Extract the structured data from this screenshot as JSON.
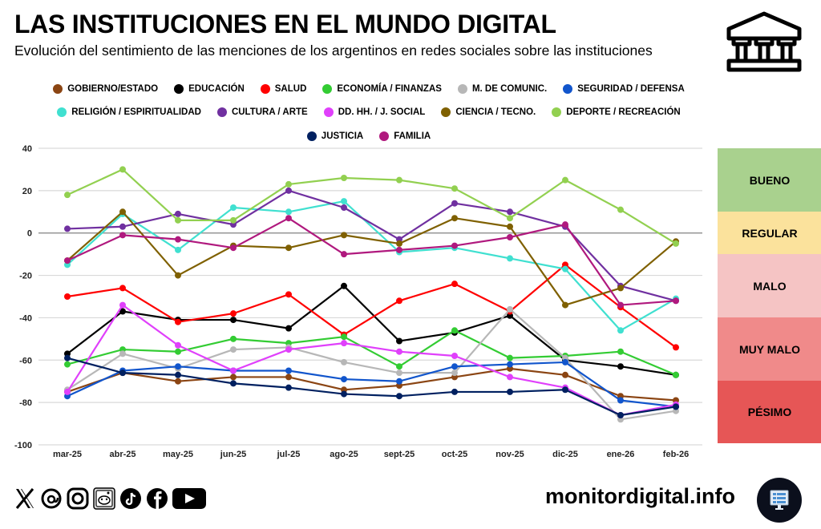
{
  "header": {
    "title": "LAS INSTITUCIONES EN EL MUNDO DIGITAL",
    "subtitle": "Evolución del sentimiento de las menciones de los argentinos en redes sociales sobre las instituciones",
    "icon": "institution-building-icon"
  },
  "scale_legend": [
    {
      "label": "BUENO",
      "color": "#a9d18e"
    },
    {
      "label": "REGULAR",
      "color": "#fbe29c"
    },
    {
      "label": "MALO",
      "color": "#f5c4c4"
    },
    {
      "label": "MUY MALO",
      "color": "#f08a8a"
    },
    {
      "label": "PÉSIMO",
      "color": "#e65656"
    }
  ],
  "footer": {
    "social_icons": [
      "x-icon",
      "threads-icon",
      "instagram-icon",
      "reddit-icon",
      "tiktok-icon",
      "facebook-icon",
      "youtube-icon"
    ],
    "site": "monitordigital.info",
    "site_icon": "monitor-dashboard-icon"
  },
  "chart_data": {
    "type": "line",
    "title": "LAS INSTITUCIONES EN EL MUNDO DIGITAL",
    "subtitle": "Evolución del sentimiento de las menciones de los argentinos en redes sociales sobre las instituciones",
    "xlabel": "",
    "ylabel": "",
    "ylim": [
      -100,
      40
    ],
    "yticks": [
      40,
      20,
      0,
      -20,
      -40,
      -60,
      -80,
      -100
    ],
    "grid": true,
    "legend_position": "top",
    "categories": [
      "mar-25",
      "abr-25",
      "may-25",
      "jun-25",
      "jul-25",
      "ago-25",
      "sept-25",
      "oct-25",
      "nov-25",
      "dic-25",
      "ene-26",
      "feb-26"
    ],
    "series": [
      {
        "name": "GOBIERNO/ESTADO",
        "color": "#8b4513",
        "values": [
          -75,
          -66,
          -70,
          -68,
          -68,
          -74,
          -72,
          -68,
          -64,
          -67,
          -77,
          -79
        ]
      },
      {
        "name": "EDUCACIÓN",
        "color": "#000000",
        "values": [
          -57,
          -37,
          -41,
          -41,
          -45,
          -25,
          -51,
          -47,
          -39,
          -60,
          -63,
          -67
        ]
      },
      {
        "name": "SALUD",
        "color": "#ff0000",
        "values": [
          -30,
          -26,
          -42,
          -38,
          -29,
          -48,
          -32,
          -24,
          -37,
          -15,
          -35,
          -54
        ]
      },
      {
        "name": "ECONOMÍA / FINANZAS",
        "color": "#33cc33",
        "values": [
          -62,
          -55,
          -56,
          -50,
          -52,
          -49,
          -63,
          -46,
          -59,
          -58,
          -56,
          -67
        ]
      },
      {
        "name": "M. DE COMUNIC.",
        "color": "#b7b7b7",
        "values": [
          -74,
          -57,
          -64,
          -55,
          -54,
          -61,
          -66,
          -66,
          -36,
          -59,
          -88,
          -84
        ]
      },
      {
        "name": "SEGURIDAD / DEFENSA",
        "color": "#1155cc",
        "values": [
          -77,
          -65,
          -63,
          -65,
          -65,
          -69,
          -70,
          -63,
          -62,
          -61,
          -79,
          -82
        ]
      },
      {
        "name": "RELIGIÓN / ESPIRITUALIDAD",
        "color": "#40e0d0",
        "values": [
          -15,
          9,
          -8,
          12,
          10,
          15,
          -9,
          -7,
          -12,
          -17,
          -46,
          -31
        ]
      },
      {
        "name": "CULTURA / ARTE",
        "color": "#7030a0",
        "values": [
          2,
          3,
          9,
          4,
          20,
          12,
          -3,
          14,
          10,
          3,
          -25,
          -32
        ]
      },
      {
        "name": "DD. HH. / J. SOCIAL",
        "color": "#e040fb",
        "values": [
          -75,
          -34,
          -53,
          -65,
          -55,
          -52,
          -56,
          -58,
          -68,
          -73,
          -86,
          -81
        ]
      },
      {
        "name": "CIENCIA / TECNO.",
        "color": "#7f6000",
        "values": [
          -13,
          10,
          -20,
          -6,
          -7,
          -1,
          -5,
          7,
          3,
          -34,
          -26,
          -4
        ]
      },
      {
        "name": "DEPORTE / RECREACIÓN",
        "color": "#92d050",
        "values": [
          18,
          30,
          6,
          6,
          23,
          26,
          25,
          21,
          7,
          25,
          11,
          -5
        ]
      },
      {
        "name": "JUSTICIA",
        "color": "#002060",
        "values": [
          -59,
          -66,
          -67,
          -71,
          -73,
          -76,
          -77,
          -75,
          -75,
          -74,
          -86,
          -82
        ]
      },
      {
        "name": "FAMILIA",
        "color": "#b0197e",
        "values": [
          -13,
          -1,
          -3,
          -7,
          7,
          -10,
          -8,
          -6,
          -2,
          4,
          -34,
          -32
        ]
      }
    ]
  }
}
